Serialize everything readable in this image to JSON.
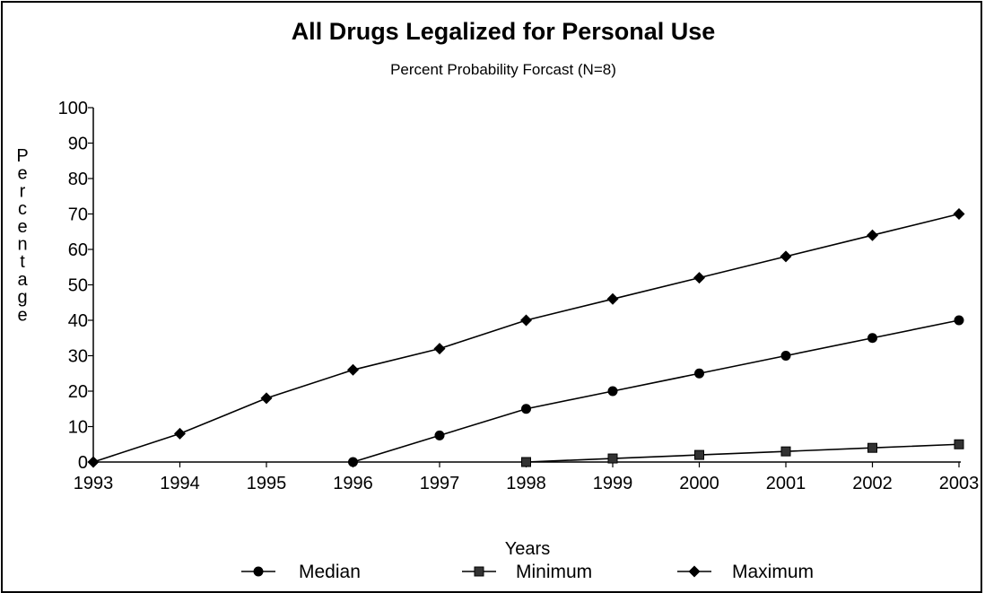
{
  "chart_data": {
    "type": "line",
    "title": "All Drugs Legalized for Personal Use",
    "subtitle": "Percent Probability Forcast (N=8)",
    "xlabel": "Years",
    "ylabel": "Percentage",
    "x": [
      "1993",
      "1994",
      "1995",
      "1996",
      "1997",
      "1998",
      "1999",
      "2000",
      "2001",
      "2002",
      "2003"
    ],
    "ylim": [
      0,
      100
    ],
    "y_ticks": [
      "0",
      "10",
      "20",
      "30",
      "40",
      "50",
      "60",
      "70",
      "80",
      "90",
      "100"
    ],
    "grid": false,
    "legend_position": "bottom",
    "series": [
      {
        "name": "Median",
        "marker": "circle",
        "color": "#000000",
        "values": [
          null,
          null,
          null,
          0,
          7.5,
          15,
          20,
          25,
          30,
          35,
          40
        ]
      },
      {
        "name": "Minimum",
        "marker": "square",
        "color": "#000000",
        "values": [
          null,
          null,
          null,
          null,
          null,
          0,
          1,
          2,
          3,
          4,
          5
        ]
      },
      {
        "name": "Maximum",
        "marker": "diamond",
        "color": "#000000",
        "values": [
          0,
          8,
          18,
          26,
          32,
          40,
          46,
          52,
          58,
          64,
          70
        ]
      }
    ]
  }
}
